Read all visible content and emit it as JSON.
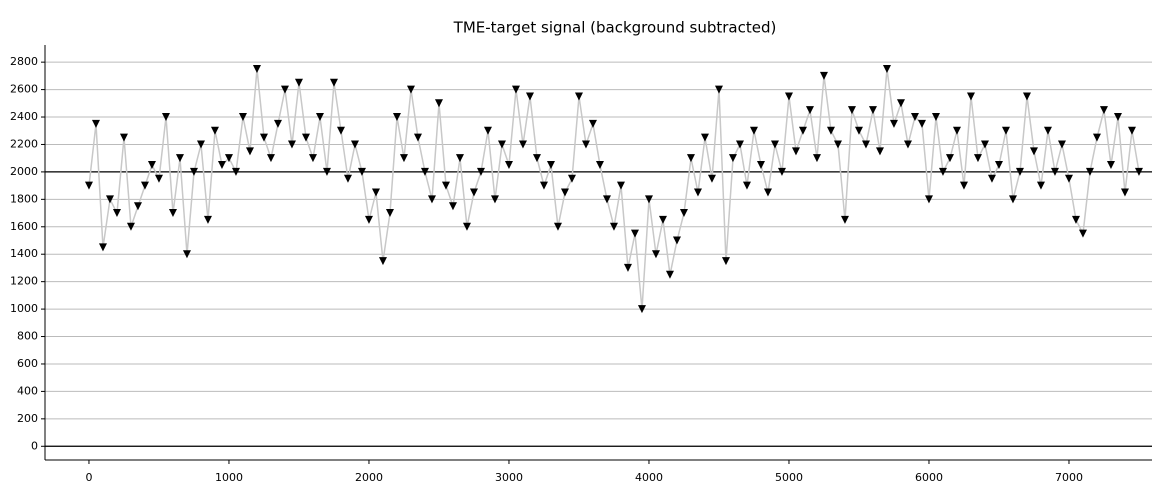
{
  "chart_data": {
    "type": "line",
    "title": "TME-target signal (background subtracted)",
    "x": [
      0,
      50,
      100,
      150,
      200,
      250,
      300,
      350,
      400,
      450,
      500,
      550,
      600,
      650,
      700,
      750,
      800,
      850,
      900,
      950,
      1000,
      1050,
      1100,
      1150,
      1200,
      1250,
      1300,
      1350,
      1400,
      1450,
      1500,
      1550,
      1600,
      1650,
      1700,
      1750,
      1800,
      1850,
      1900,
      1950,
      2000,
      2050,
      2100,
      2150,
      2200,
      2250,
      2300,
      2350,
      2400,
      2450,
      2500,
      2550,
      2600,
      2650,
      2700,
      2750,
      2800,
      2850,
      2900,
      2950,
      3000,
      3050,
      3100,
      3150,
      3200,
      3250,
      3300,
      3350,
      3400,
      3450,
      3500,
      3550,
      3600,
      3650,
      3700,
      3750,
      3800,
      3850,
      3900,
      3950,
      4000,
      4050,
      4100,
      4150,
      4200,
      4250,
      4300,
      4350,
      4400,
      4450,
      4500,
      4550,
      4600,
      4650,
      4700,
      4750,
      4800,
      4850,
      4900,
      4950,
      5000,
      5050,
      5100,
      5150,
      5200,
      5250,
      5300,
      5350,
      5400,
      5450,
      5500,
      5550,
      5600,
      5650,
      5700,
      5750,
      5800,
      5850,
      5900,
      5950,
      6000,
      6050,
      6100,
      6150,
      6200,
      6250,
      6300,
      6350,
      6400,
      6450,
      6500,
      6550,
      6600,
      6650,
      6700,
      6750,
      6800,
      6850,
      6900,
      6950,
      7000,
      7050,
      7100,
      7150,
      7200,
      7250,
      7300,
      7350,
      7400,
      7450,
      7500
    ],
    "values": [
      1900,
      2350,
      1450,
      1800,
      1700,
      2250,
      1600,
      1750,
      1900,
      2050,
      1950,
      2400,
      1700,
      2100,
      1400,
      2000,
      2200,
      1650,
      2300,
      2050,
      2100,
      2000,
      2400,
      2150,
      2750,
      2250,
      2100,
      2350,
      2600,
      2200,
      2650,
      2250,
      2100,
      2400,
      2000,
      2650,
      2300,
      1950,
      2200,
      2000,
      1650,
      1850,
      1350,
      1700,
      2400,
      2100,
      2600,
      2250,
      2000,
      1800,
      2500,
      1900,
      1750,
      2100,
      1600,
      1850,
      2000,
      2300,
      1800,
      2200,
      2050,
      2600,
      2200,
      2550,
      2100,
      1900,
      2050,
      1600,
      1850,
      1950,
      2550,
      2200,
      2350,
      2050,
      1800,
      1600,
      1900,
      1300,
      1550,
      1000,
      1800,
      1400,
      1650,
      1250,
      1500,
      1700,
      2100,
      1850,
      2250,
      1950,
      2600,
      1350,
      2100,
      2200,
      1900,
      2300,
      2050,
      1850,
      2200,
      2000,
      2550,
      2150,
      2300,
      2450,
      2100,
      2700,
      2300,
      2200,
      1650,
      2450,
      2300,
      2200,
      2450,
      2150,
      2750,
      2350,
      2500,
      2200,
      2400,
      2350,
      1800,
      2400,
      2000,
      2100,
      2300,
      1900,
      2550,
      2100,
      2200,
      1950,
      2050,
      2300,
      1800,
      2000,
      2550,
      2150,
      1900,
      2300,
      2000,
      2200,
      1950,
      1650,
      1550,
      2000,
      2250,
      2450,
      2050,
      2400,
      1850,
      2300,
      2000
    ],
    "color": "#000000",
    "line_color": "#c8c8c8",
    "xlim": [
      -314,
      7593
    ],
    "ylim": [
      -100,
      2925
    ],
    "xticks": [
      0,
      1000,
      2000,
      3000,
      4000,
      5000,
      6000,
      7000
    ],
    "yticks": [
      0,
      200,
      400,
      600,
      800,
      1000,
      1200,
      1400,
      1600,
      1800,
      2000,
      2200,
      2400,
      2600,
      2800
    ],
    "grid": true,
    "reference_lines": [
      0,
      2000
    ]
  }
}
